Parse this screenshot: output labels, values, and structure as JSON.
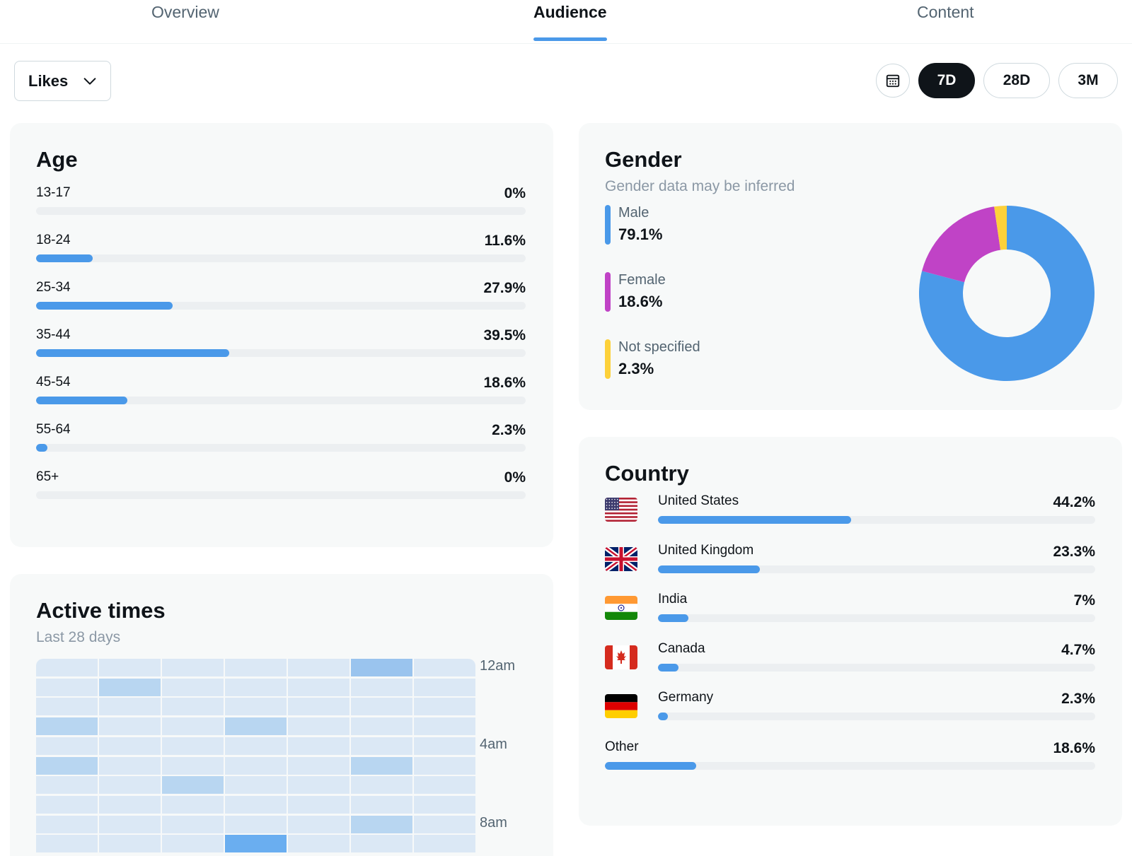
{
  "tabs": [
    {
      "label": "Overview",
      "active": false
    },
    {
      "label": "Audience",
      "active": true
    },
    {
      "label": "Content",
      "active": false
    }
  ],
  "toolbar": {
    "metric_select": "Likes",
    "calendar_icon": "calendar-icon",
    "ranges": [
      {
        "label": "7D",
        "active": true
      },
      {
        "label": "28D",
        "active": false
      },
      {
        "label": "3M",
        "active": false
      }
    ]
  },
  "age": {
    "title": "Age",
    "rows": [
      {
        "label": "13-17",
        "value": "0%",
        "pct": 0
      },
      {
        "label": "18-24",
        "value": "11.6%",
        "pct": 11.6
      },
      {
        "label": "25-34",
        "value": "27.9%",
        "pct": 27.9
      },
      {
        "label": "35-44",
        "value": "39.5%",
        "pct": 39.5
      },
      {
        "label": "45-54",
        "value": "18.6%",
        "pct": 18.6
      },
      {
        "label": "55-64",
        "value": "2.3%",
        "pct": 2.3
      },
      {
        "label": "65+",
        "value": "0%",
        "pct": 0
      }
    ]
  },
  "gender": {
    "title": "Gender",
    "subtitle": "Gender data may be inferred",
    "items": [
      {
        "label": "Male",
        "value": "79.1%",
        "pct": 79.1,
        "color": "#4a99e9"
      },
      {
        "label": "Female",
        "value": "18.6%",
        "pct": 18.6,
        "color": "#c043c6"
      },
      {
        "label": "Not specified",
        "value": "2.3%",
        "pct": 2.3,
        "color": "#fdd13a"
      }
    ]
  },
  "country": {
    "title": "Country",
    "rows": [
      {
        "label": "United States",
        "value": "44.2%",
        "pct": 44.2,
        "flag": "flag-us-icon"
      },
      {
        "label": "United Kingdom",
        "value": "23.3%",
        "pct": 23.3,
        "flag": "flag-uk-icon"
      },
      {
        "label": "India",
        "value": "7%",
        "pct": 7,
        "flag": "flag-india-icon"
      },
      {
        "label": "Canada",
        "value": "4.7%",
        "pct": 4.7,
        "flag": "flag-canada-icon"
      },
      {
        "label": "Germany",
        "value": "2.3%",
        "pct": 2.3,
        "flag": "flag-germany-icon"
      }
    ],
    "other": {
      "label": "Other",
      "value": "18.6%",
      "pct": 18.6
    }
  },
  "active_times": {
    "title": "Active times",
    "subtitle": "Last 28 days",
    "time_labels": [
      "12am",
      "4am",
      "8am"
    ],
    "intensity_rows": [
      [
        0,
        0,
        0,
        0,
        0,
        2,
        0
      ],
      [
        0,
        1,
        0,
        0,
        0,
        0,
        0
      ],
      [
        0,
        0,
        0,
        0,
        0,
        0,
        0
      ],
      [
        1,
        0,
        0,
        1,
        0,
        0,
        0
      ],
      [
        0,
        0,
        0,
        0,
        0,
        0,
        0
      ],
      [
        1,
        0,
        0,
        0,
        0,
        1,
        0
      ],
      [
        0,
        0,
        1,
        0,
        0,
        0,
        0
      ],
      [
        0,
        0,
        0,
        0,
        0,
        0,
        0
      ],
      [
        0,
        0,
        0,
        0,
        0,
        1,
        0
      ],
      [
        0,
        0,
        0,
        3,
        0,
        0,
        0
      ]
    ]
  },
  "colors": {
    "accent": "#4a99e9",
    "heat_levels": [
      "#dbe8f5",
      "#b8d6f1",
      "#9ac4ee",
      "#6aaef0"
    ]
  }
}
